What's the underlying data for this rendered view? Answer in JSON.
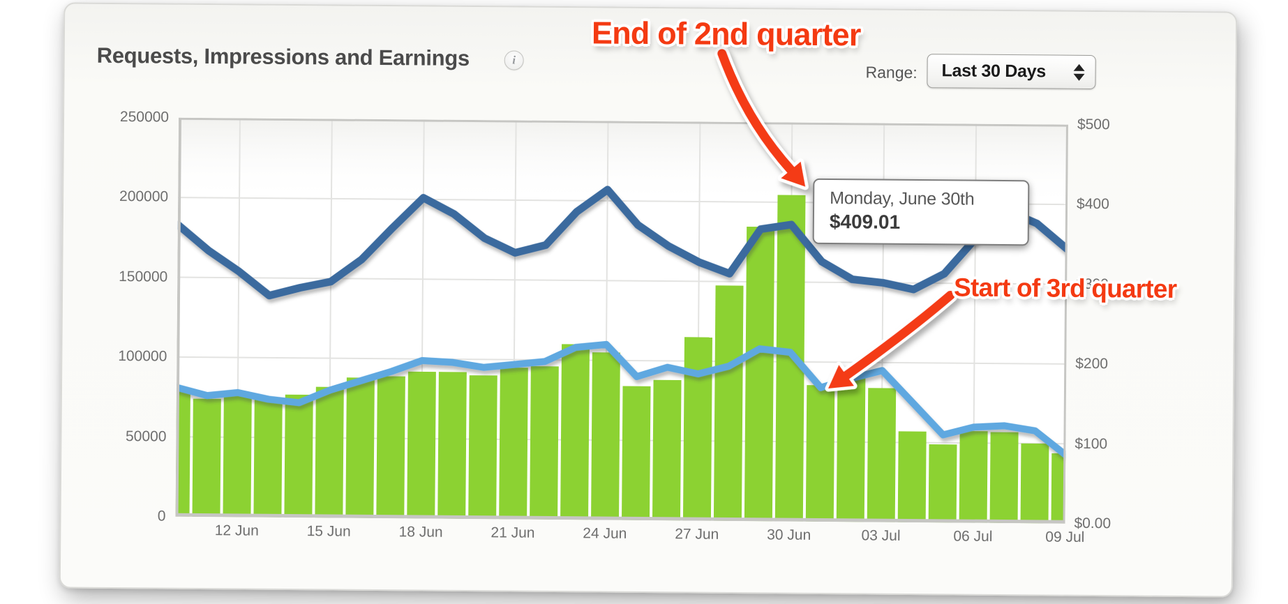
{
  "header": {
    "title": "Requests, Impressions and Earnings",
    "range_label": "Range:",
    "range_value": "Last 30 Days"
  },
  "tooltip": {
    "date": "Monday, June 30th",
    "value": "$409.01"
  },
  "annotations": {
    "end_q2": "End of 2nd quarter",
    "start_q3": "Start of 3rd quarter"
  },
  "axes": {
    "left_ticks": [
      "250000",
      "200000",
      "150000",
      "100000",
      "50000",
      "0"
    ],
    "right_ticks": [
      "$500",
      "$400",
      "$300",
      "$200",
      "$100",
      "$0.00"
    ],
    "x_tick_labels": [
      "12 Jun",
      "15 Jun",
      "18 Jun",
      "21 Jun",
      "24 Jun",
      "27 Jun",
      "30 Jun",
      "03 Jul",
      "06 Jul",
      "09 Jul"
    ],
    "x_tick_indices": [
      2,
      5,
      8,
      11,
      14,
      17,
      20,
      23,
      26,
      29
    ],
    "left_max": 250000,
    "right_max": 500
  },
  "chart_data": {
    "type": "bar+line dual-axis",
    "title": "Requests, Impressions and Earnings",
    "x": [
      "10 Jun",
      "11 Jun",
      "12 Jun",
      "13 Jun",
      "14 Jun",
      "15 Jun",
      "16 Jun",
      "17 Jun",
      "18 Jun",
      "19 Jun",
      "20 Jun",
      "21 Jun",
      "22 Jun",
      "23 Jun",
      "24 Jun",
      "25 Jun",
      "26 Jun",
      "27 Jun",
      "28 Jun",
      "29 Jun",
      "30 Jun",
      "01 Jul",
      "02 Jul",
      "03 Jul",
      "04 Jul",
      "05 Jul",
      "06 Jul",
      "07 Jul",
      "08 Jul",
      "09 Jul"
    ],
    "ylim_left": [
      0,
      250000
    ],
    "ylim_right": [
      0,
      500
    ],
    "grid": true,
    "legend_position": "none",
    "series": [
      {
        "name": "Earnings",
        "type": "bar",
        "axis": "right",
        "unit": "USD",
        "values": [
          160,
          148,
          152,
          148,
          154,
          164,
          176,
          178,
          184,
          184,
          180,
          190,
          192,
          220,
          210,
          168,
          176,
          230,
          295,
          369,
          409.01,
          171,
          185,
          168,
          114,
          98,
          115,
          114,
          100,
          88
        ]
      },
      {
        "name": "Impressions",
        "type": "line",
        "axis": "left",
        "values": [
          81000,
          76000,
          78000,
          74000,
          72000,
          80000,
          86000,
          92000,
          99000,
          98000,
          95000,
          97000,
          99000,
          108000,
          110000,
          90000,
          96000,
          92000,
          97000,
          108000,
          106000,
          84000,
          90000,
          95000,
          75000,
          55000,
          60000,
          61000,
          58000,
          43000
        ]
      },
      {
        "name": "Requests",
        "type": "line",
        "axis": "left",
        "values": [
          183000,
          167000,
          154000,
          139000,
          144000,
          148000,
          162000,
          182000,
          201000,
          191000,
          176000,
          167000,
          172000,
          193000,
          207000,
          185000,
          172000,
          162000,
          155000,
          183000,
          186000,
          163000,
          152000,
          150000,
          146000,
          156000,
          178000,
          196000,
          188000,
          172000
        ]
      }
    ],
    "highlight": {
      "x": "30 Jun",
      "series": "Earnings",
      "value": 409.01,
      "tooltip": "Monday, June 30th — $409.01"
    }
  },
  "colors": {
    "bar_green": "#8CD232",
    "line_dark_blue": "#3A6A9E",
    "line_light_blue": "#5FA8E0",
    "annotation_red": "#F43A12",
    "grid": "#E3E3E1",
    "plot_border": "#C6C6C3",
    "title_text": "#4B4B4B",
    "tick_text": "#6E6E6E"
  }
}
